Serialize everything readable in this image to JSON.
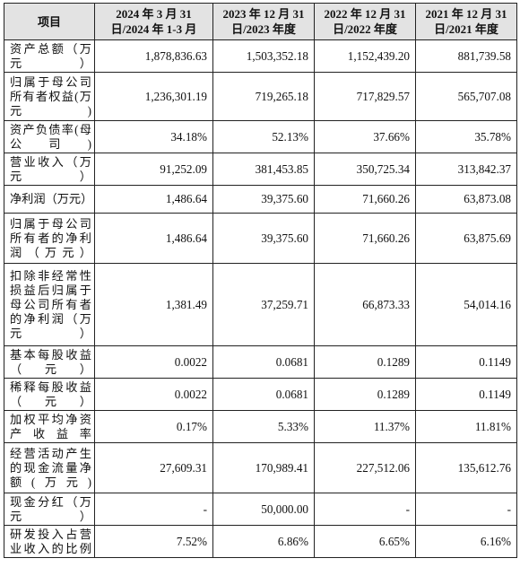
{
  "headers": [
    "项目",
    "2024 年 3 月 31 日/2024 年 1-3 月",
    "2023 年 12 月 31 日/2023 年度",
    "2022 年 12 月 31 日/2022 年度",
    "2021 年 12 月 31 日/2021 年度"
  ],
  "rows": [
    {
      "label": "资产总额（万元）",
      "values": [
        "1,878,836.63",
        "1,503,352.18",
        "1,152,439.20",
        "881,739.58"
      ]
    },
    {
      "label": "归属于母公司所有者权益(万元)",
      "values": [
        "1,236,301.19",
        "719,265.18",
        "717,829.57",
        "565,707.08"
      ]
    },
    {
      "label": "资产负债率(母公司)",
      "values": [
        "34.18%",
        "52.13%",
        "37.66%",
        "35.78%"
      ]
    },
    {
      "label": "营业收入（万元）",
      "values": [
        "91,252.09",
        "381,453.85",
        "350,725.34",
        "313,842.37"
      ]
    },
    {
      "label": "净利润（万元）",
      "values": [
        "1,486.64",
        "39,375.60",
        "71,660.26",
        "63,873.08"
      ]
    },
    {
      "label": "归属于母公司所有者的净利润（万元）",
      "values": [
        "1,486.64",
        "39,375.60",
        "71,660.26",
        "63,875.69"
      ]
    },
    {
      "label": "扣除非经常性损益后归属于母公司所有者的净利润（万元）",
      "values": [
        "1,381.49",
        "37,259.71",
        "66,873.33",
        "54,014.16"
      ]
    },
    {
      "label": "基本每股收益（元）",
      "values": [
        "0.0022",
        "0.0681",
        "0.1289",
        "0.1149"
      ]
    },
    {
      "label": "稀释每股收益（元）",
      "values": [
        "0.0022",
        "0.0681",
        "0.1289",
        "0.1149"
      ]
    },
    {
      "label": "加权平均净资产收益率",
      "values": [
        "0.17%",
        "5.33%",
        "11.37%",
        "11.81%"
      ]
    },
    {
      "label": "经营活动产生的现金流量净额(万元)",
      "values": [
        "27,609.31",
        "170,989.41",
        "227,512.06",
        "135,612.76"
      ]
    },
    {
      "label": "现金分红（万元）",
      "values": [
        "-",
        "50,000.00",
        "-",
        "-"
      ]
    },
    {
      "label": "研发投入占营业收入的比例",
      "values": [
        "7.52%",
        "6.86%",
        "6.65%",
        "6.16%"
      ]
    }
  ]
}
